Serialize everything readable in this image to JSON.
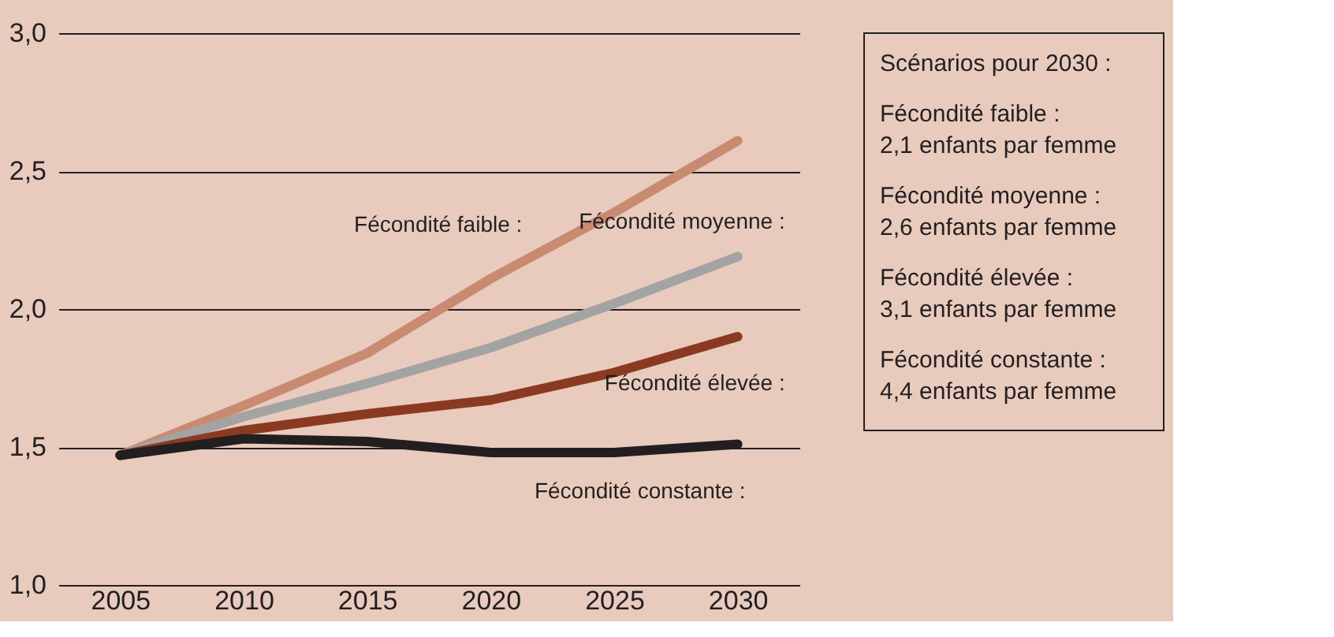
{
  "chart_data": {
    "type": "line",
    "x": [
      2005,
      2010,
      2015,
      2020,
      2025,
      2030
    ],
    "series": [
      {
        "name": "Fécondité faible :",
        "color": "#c98a72",
        "values": [
          1.47,
          1.65,
          1.84,
          2.11,
          2.35,
          2.61
        ]
      },
      {
        "name": "Fécondité moyenne :",
        "color": "#a3a3a3",
        "values": [
          1.47,
          1.61,
          1.73,
          1.86,
          2.02,
          2.19
        ]
      },
      {
        "name": "Fécondité élevée :",
        "color": "#8b3a22",
        "values": [
          1.47,
          1.56,
          1.62,
          1.67,
          1.77,
          1.9
        ]
      },
      {
        "name": "Fécondité constante :",
        "color": "#231f20",
        "values": [
          1.47,
          1.53,
          1.52,
          1.48,
          1.48,
          1.51
        ]
      }
    ],
    "xlim": [
      2002.5,
      2032.5
    ],
    "xticks": [
      2005,
      2010,
      2015,
      2020,
      2025,
      2030
    ],
    "ylim": [
      1.0,
      3.0
    ],
    "yticks": [
      {
        "value": 1.0,
        "label": "1,0"
      },
      {
        "value": 1.5,
        "label": "1,5"
      },
      {
        "value": 2.0,
        "label": "2,0"
      },
      {
        "value": 2.5,
        "label": "2,5"
      },
      {
        "value": 3.0,
        "label": "3,0"
      }
    ],
    "grid": "y",
    "marker": "none",
    "line_style": "solid",
    "annotations": [
      "Scénarios pour 2030 :",
      "Fécondité faible :\n2,1 enfants par femme",
      "Fécondité moyenne :\n2,6 enfants par femme",
      "Fécondité élevée :\n3,1 enfants par femme",
      "Fécondité constante :\n4,4 enfants par femme"
    ]
  }
}
